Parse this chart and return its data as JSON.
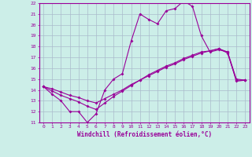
{
  "xlabel": "Windchill (Refroidissement éolien,°C)",
  "bg_color": "#cceee8",
  "grid_color": "#aabbcc",
  "line_color": "#990099",
  "hours": [
    0,
    1,
    2,
    3,
    4,
    5,
    6,
    7,
    8,
    9,
    10,
    11,
    12,
    13,
    14,
    15,
    16,
    17,
    18,
    19,
    20,
    21,
    22,
    23
  ],
  "temp_curve": [
    14.3,
    13.6,
    13.0,
    12.0,
    12.0,
    11.0,
    11.8,
    14.0,
    15.0,
    15.5,
    18.5,
    21.0,
    20.5,
    20.1,
    21.3,
    21.5,
    22.2,
    21.7,
    19.0,
    17.5,
    17.7,
    17.5,
    14.8,
    14.9
  ],
  "line2": [
    14.3,
    13.9,
    13.5,
    13.2,
    12.9,
    12.5,
    12.2,
    12.8,
    13.4,
    13.9,
    14.4,
    14.9,
    15.4,
    15.8,
    16.2,
    16.5,
    16.9,
    17.2,
    17.5,
    17.6,
    17.8,
    17.4,
    14.9,
    14.9
  ],
  "line3": [
    14.3,
    14.1,
    13.8,
    13.5,
    13.3,
    13.0,
    12.8,
    13.2,
    13.6,
    14.0,
    14.5,
    14.9,
    15.3,
    15.7,
    16.1,
    16.4,
    16.8,
    17.1,
    17.4,
    17.6,
    17.8,
    17.5,
    15.0,
    14.9
  ],
  "ylim": [
    11,
    22
  ],
  "xlim": [
    -0.5,
    23.5
  ],
  "yticks": [
    11,
    12,
    13,
    14,
    15,
    16,
    17,
    18,
    19,
    20,
    21,
    22
  ],
  "xticks": [
    0,
    1,
    2,
    3,
    4,
    5,
    6,
    7,
    8,
    9,
    10,
    11,
    12,
    13,
    14,
    15,
    16,
    17,
    18,
    19,
    20,
    21,
    22,
    23
  ]
}
